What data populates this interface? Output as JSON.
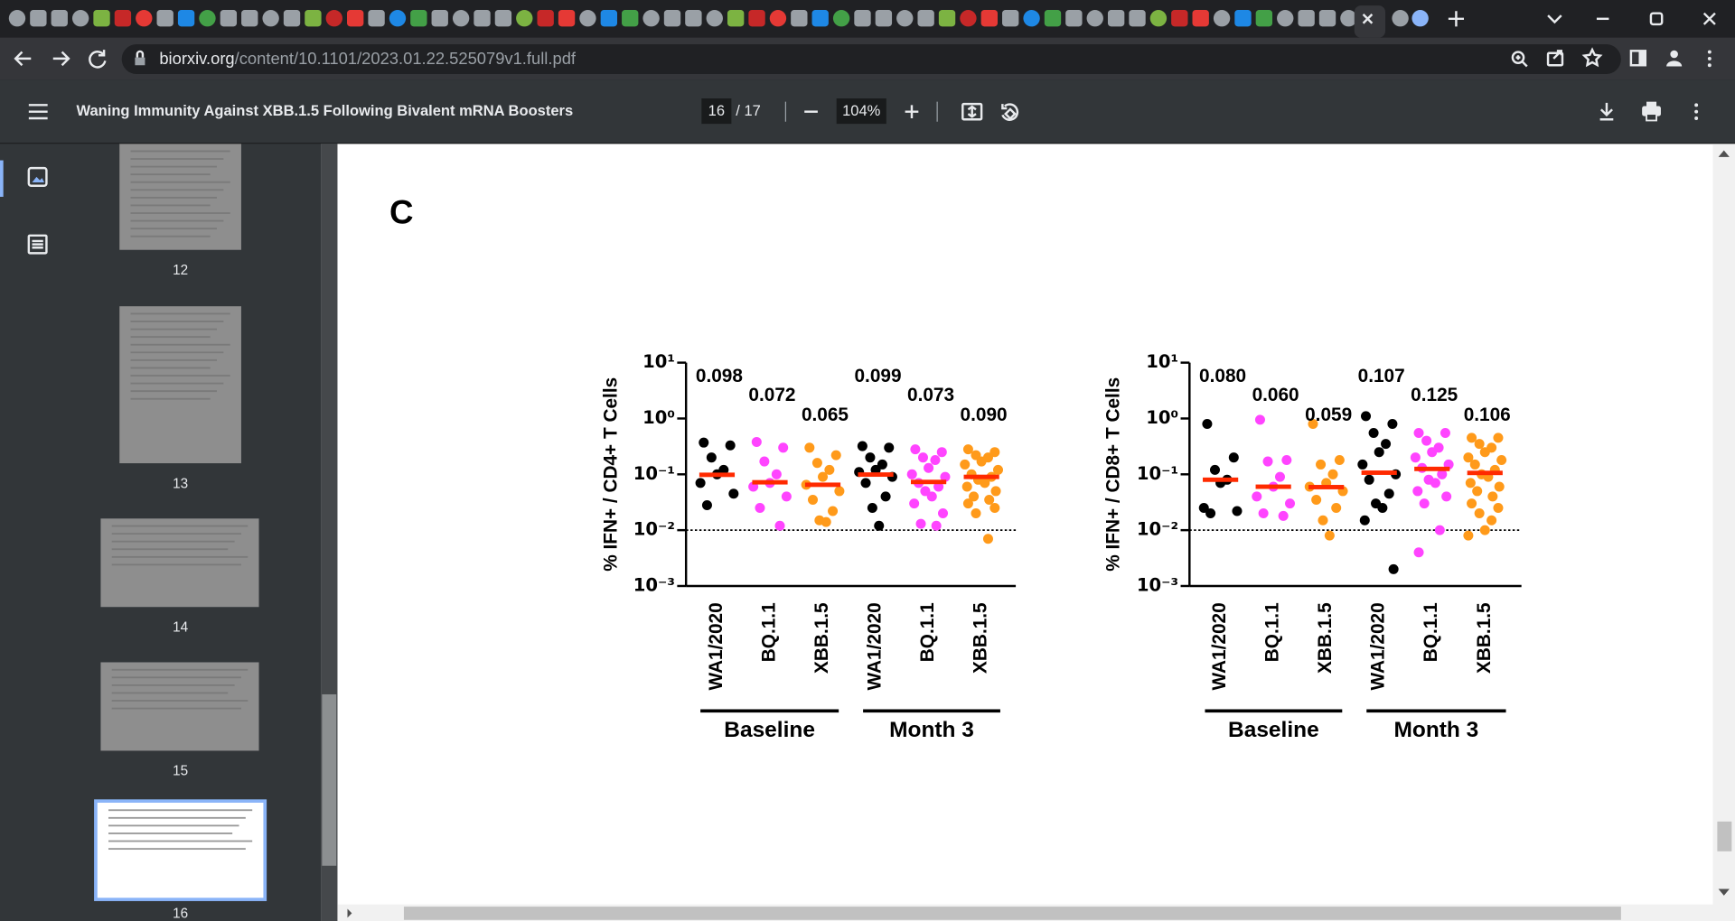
{
  "browser": {
    "url_host": "biorxiv.org",
    "url_path": "/content/10.1101/2023.01.22.525079v1.full.pdf"
  },
  "pdf_toolbar": {
    "title": "Waning Immunity Against XBB.1.5 Following Bivalent mRNA Boosters",
    "page": "16",
    "page_total": "/ 17",
    "zoom": "104%"
  },
  "sidebar": {
    "thumbnails": [
      "12",
      "13",
      "14",
      "15",
      "16"
    ],
    "selected": 4
  },
  "figure": {
    "panel": "C"
  },
  "chart_data": [
    {
      "type": "scatter",
      "ylabel": "% IFN+ / CD4+ T Cells",
      "categories": [
        "WA1/2020",
        "BQ.1.1",
        "XBB.1.5",
        "WA1/2020",
        "BQ.1.1",
        "XBB.1.5"
      ],
      "colors": [
        "#000000",
        "#ff44ff",
        "#ff9a1a",
        "#000000",
        "#ff44ff",
        "#ff9a1a"
      ],
      "groups": [
        "Baseline",
        "Month 3"
      ],
      "values": [
        [
          0.37,
          0.33,
          0.2,
          0.12,
          0.1,
          0.07,
          0.045,
          0.028
        ],
        [
          0.38,
          0.3,
          0.17,
          0.1,
          0.07,
          0.06,
          0.04,
          0.025,
          0.012
        ],
        [
          0.3,
          0.22,
          0.16,
          0.12,
          0.09,
          0.065,
          0.05,
          0.035,
          0.022,
          0.015,
          0.014
        ],
        [
          0.32,
          0.3,
          0.2,
          0.15,
          0.12,
          0.11,
          0.09,
          0.07,
          0.04,
          0.025,
          0.012
        ],
        [
          0.28,
          0.25,
          0.2,
          0.18,
          0.13,
          0.1,
          0.09,
          0.07,
          0.06,
          0.05,
          0.04,
          0.03,
          0.02,
          0.013,
          0.012
        ],
        [
          0.28,
          0.25,
          0.22,
          0.2,
          0.17,
          0.15,
          0.12,
          0.1,
          0.09,
          0.08,
          0.07,
          0.06,
          0.05,
          0.04,
          0.035,
          0.03,
          0.025,
          0.02,
          0.007
        ]
      ],
      "medians": [
        0.098,
        0.072,
        0.065,
        0.099,
        0.073,
        0.09
      ],
      "median_labels": [
        "0.098",
        "0.072",
        "0.065",
        "0.099",
        "0.073",
        "0.090"
      ],
      "median_color": "#ff2a00",
      "log": true,
      "ylim": [
        0.001,
        10
      ],
      "yticks": [
        {
          "value": 10,
          "label": "10¹"
        },
        {
          "value": 1,
          "label": "10⁰"
        },
        {
          "value": 0.1,
          "label": "10⁻¹"
        },
        {
          "value": 0.01,
          "label": "10⁻²"
        },
        {
          "value": 0.001,
          "label": "10⁻³"
        }
      ],
      "reference_line": 0.01
    },
    {
      "type": "scatter",
      "ylabel": "% IFN+ / CD8+ T Cells",
      "categories": [
        "WA1/2020",
        "BQ.1.1",
        "XBB.1.5",
        "WA1/2020",
        "BQ.1.1",
        "XBB.1.5"
      ],
      "colors": [
        "#000000",
        "#ff44ff",
        "#ff9a1a",
        "#000000",
        "#ff44ff",
        "#ff9a1a"
      ],
      "groups": [
        "Baseline",
        "Month 3"
      ],
      "values": [
        [
          0.8,
          0.2,
          0.12,
          0.08,
          0.07,
          0.025,
          0.022,
          0.02
        ],
        [
          0.95,
          0.18,
          0.17,
          0.09,
          0.06,
          0.04,
          0.03,
          0.02,
          0.018
        ],
        [
          0.8,
          0.18,
          0.15,
          0.1,
          0.07,
          0.06,
          0.05,
          0.035,
          0.025,
          0.015,
          0.008
        ],
        [
          1.1,
          0.8,
          0.55,
          0.35,
          0.25,
          0.15,
          0.1,
          0.08,
          0.045,
          0.03,
          0.025,
          0.015,
          0.002
        ],
        [
          0.55,
          0.55,
          0.4,
          0.3,
          0.25,
          0.2,
          0.15,
          0.13,
          0.1,
          0.08,
          0.07,
          0.05,
          0.04,
          0.03,
          0.01,
          0.004
        ],
        [
          0.45,
          0.45,
          0.35,
          0.3,
          0.25,
          0.2,
          0.18,
          0.15,
          0.12,
          0.1,
          0.09,
          0.07,
          0.06,
          0.05,
          0.04,
          0.03,
          0.025,
          0.02,
          0.015,
          0.01,
          0.008
        ]
      ],
      "medians": [
        0.08,
        0.06,
        0.059,
        0.107,
        0.125,
        0.106
      ],
      "median_labels": [
        "0.080",
        "0.060",
        "0.059",
        "0.107",
        "0.125",
        "0.106"
      ],
      "median_color": "#ff2a00",
      "log": true,
      "ylim": [
        0.001,
        10
      ],
      "yticks": [
        {
          "value": 10,
          "label": "10¹"
        },
        {
          "value": 1,
          "label": "10⁰"
        },
        {
          "value": 0.1,
          "label": "10⁻¹"
        },
        {
          "value": 0.01,
          "label": "10⁻²"
        },
        {
          "value": 0.001,
          "label": "10⁻³"
        }
      ],
      "reference_line": 0.01
    }
  ]
}
